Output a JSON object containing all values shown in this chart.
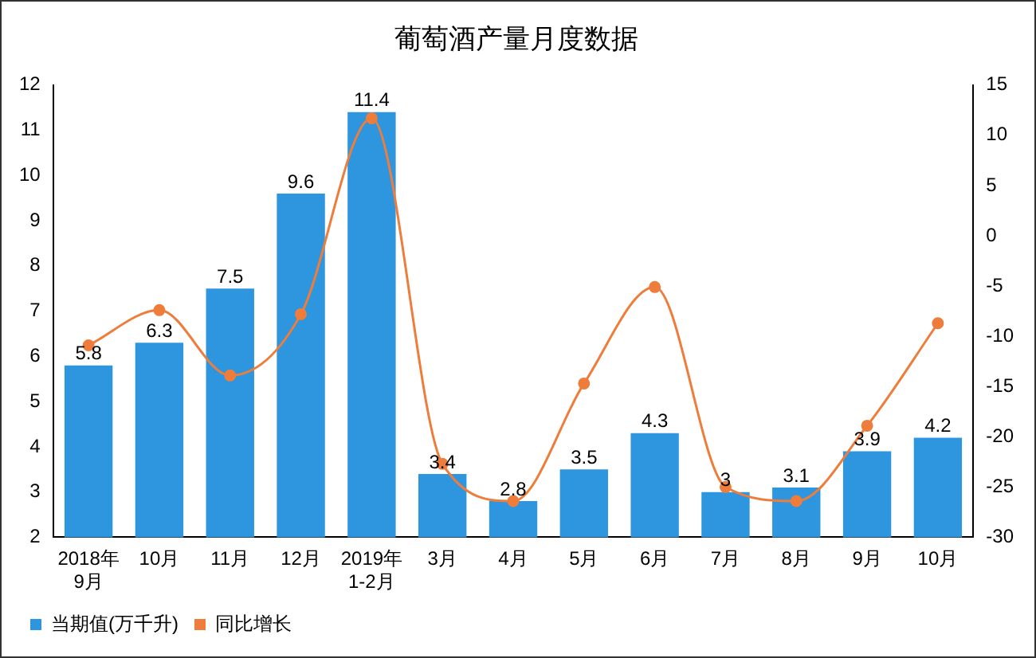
{
  "chart_data": {
    "type": "bar",
    "title": "葡萄酒产量月度数据",
    "categories": [
      "2018年\n9月",
      "10月",
      "11月",
      "12月",
      "2019年\n1-2月",
      "3月",
      "4月",
      "5月",
      "6月",
      "7月",
      "8月",
      "9月",
      "10月"
    ],
    "series": [
      {
        "name": "当期值(万千升)",
        "color": "#2e96de",
        "values": [
          5.8,
          6.3,
          7.5,
          9.6,
          11.4,
          3.4,
          2.8,
          3.5,
          4.3,
          3,
          3.1,
          3.9,
          4.2
        ],
        "value_labels": [
          "5.8",
          "6.3",
          "7.5",
          "9.6",
          "11.4",
          "3.4",
          "2.8",
          "3.5",
          "4.3",
          "3",
          "3.1",
          "3.9",
          "4.2"
        ]
      },
      {
        "name": "同比增长",
        "type": "line",
        "axis": "y2",
        "color": "#ee7d3b",
        "marker": "circle",
        "values": [
          -10.9,
          -7.4,
          -13.9,
          -7.8,
          11.7,
          -22.7,
          -26.4,
          -14.7,
          -5.1,
          -25.0,
          -26.4,
          -18.9,
          -8.7
        ]
      }
    ],
    "ylim": [
      2,
      12
    ],
    "yticks": [
      2,
      3,
      4,
      5,
      6,
      7,
      8,
      9,
      10,
      11,
      12
    ],
    "y2lim": [
      -30,
      15
    ],
    "y2ticks": [
      -30,
      -25,
      -20,
      -15,
      -10,
      -5,
      0,
      5,
      10,
      15
    ],
    "grid": false,
    "legend": "bottom left"
  }
}
